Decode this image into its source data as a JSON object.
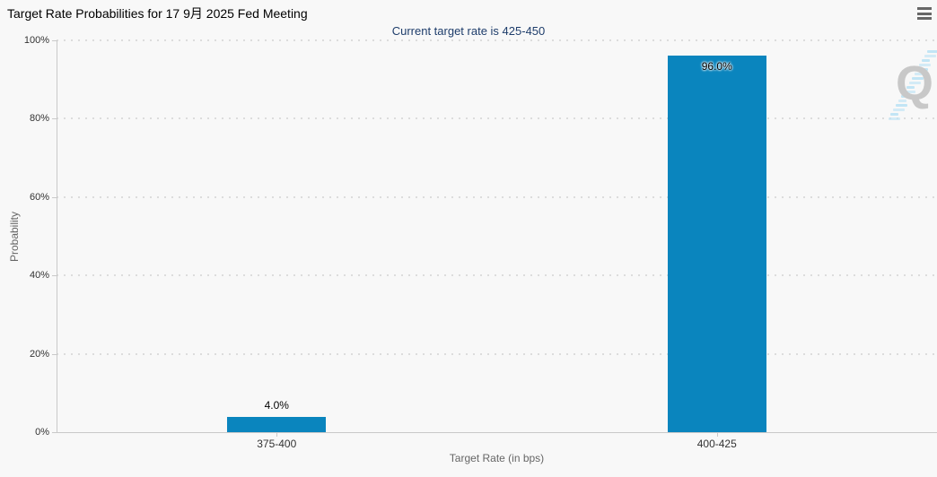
{
  "chart_data": {
    "type": "bar",
    "title": "Target Rate Probabilities for 17 9月 2025 Fed Meeting",
    "subtitle": "Current target rate is 425-450",
    "categories": [
      "375-400",
      "400-425"
    ],
    "values": [
      4.0,
      96.0
    ],
    "data_labels": [
      "4.0%",
      "96.0%"
    ],
    "xlabel": "Target Rate (in bps)",
    "ylabel": "Probability",
    "ylim": [
      0,
      100
    ],
    "ytick_labels": [
      "0%",
      "20%",
      "40%",
      "60%",
      "80%",
      "100%"
    ],
    "grid": "horizontal-dotted",
    "legend": "none"
  },
  "watermark": {
    "letter": "Q"
  },
  "icons": {
    "menu": "hamburger-icon",
    "watermark": "q-logo"
  },
  "colors": {
    "background": "#f8f8f8",
    "title": "#000000",
    "subtitle": "#1e3d6b",
    "bar": "#0a85be",
    "grid": "#dcdcdc",
    "axis_line": "#c9c9c9",
    "tick_label": "#333333",
    "axis_title": "#666666",
    "data_label": "#000000",
    "menu_icon": "#676767",
    "watermark_q": "#c8c8c8",
    "watermark_dash": "#bfe4f4"
  }
}
